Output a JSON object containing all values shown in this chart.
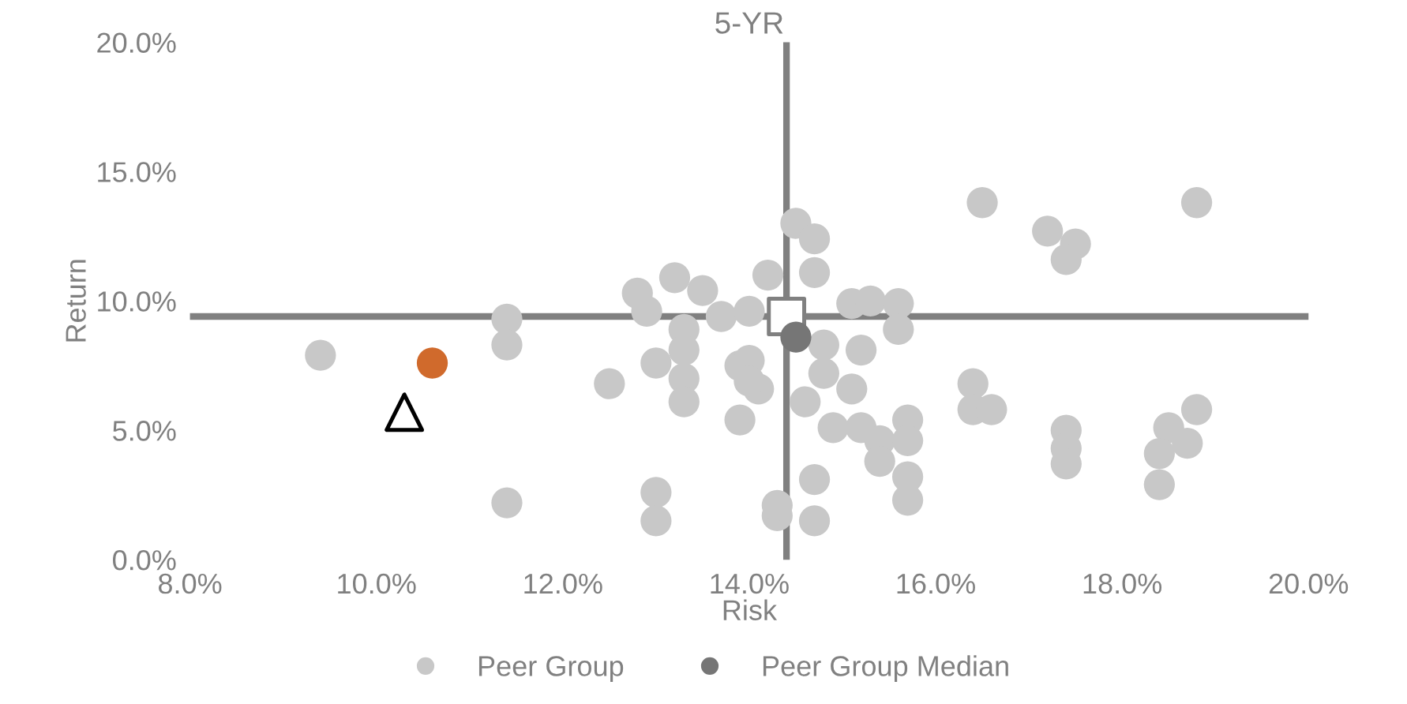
{
  "chart_data": {
    "type": "scatter",
    "title": "5-YR",
    "xlabel": "Risk",
    "ylabel": "Return",
    "xlim": [
      8,
      20
    ],
    "ylim": [
      0,
      20
    ],
    "xticks": [
      {
        "value": 8,
        "label": "8.0%"
      },
      {
        "value": 10,
        "label": "10.0%"
      },
      {
        "value": 12,
        "label": "12.0%"
      },
      {
        "value": 14,
        "label": "14.0%"
      },
      {
        "value": 16,
        "label": "16.0%"
      },
      {
        "value": 18,
        "label": "18.0%"
      },
      {
        "value": 20,
        "label": "20.0%"
      }
    ],
    "yticks": [
      {
        "value": 0,
        "label": "0.0%"
      },
      {
        "value": 5,
        "label": "5.0%"
      },
      {
        "value": 10,
        "label": "10.0%"
      },
      {
        "value": 15,
        "label": "15.0%"
      },
      {
        "value": 20,
        "label": "20.0%"
      }
    ],
    "grid": false,
    "legend": "bottom",
    "ref_lines": [
      {
        "axis": "x",
        "value": 14.4,
        "color": "#808080"
      },
      {
        "axis": "y",
        "value": 9.4,
        "color": "#808080"
      }
    ],
    "series": [
      {
        "name": "Peer Group",
        "color": "#c8c8c8",
        "marker": "circle",
        "x": [
          9.4,
          11.4,
          11.4,
          11.4,
          12.5,
          13.0,
          13.0,
          13.0,
          12.8,
          13.2,
          13.5,
          13.3,
          13.3,
          13.3,
          13.7,
          14.0,
          13.9,
          13.9,
          14.2,
          14.3,
          16.5,
          18.8,
          17.2,
          17.5,
          17.4,
          14.5,
          14.7,
          14.7,
          15.1,
          15.3,
          15.6,
          15.6,
          15.2,
          14.8,
          14.8,
          14.6,
          15.1,
          14.9,
          15.2,
          15.4,
          15.4,
          15.7,
          15.7,
          15.7,
          15.7,
          16.4,
          16.4,
          16.6,
          17.4,
          17.4,
          17.4,
          18.5,
          18.4,
          18.4,
          18.8,
          18.7,
          14.7,
          14.7,
          14.3,
          14.1,
          14.0,
          14.0,
          12.9,
          13.3
        ],
        "values": [
          7.9,
          2.2,
          9.3,
          8.3,
          6.8,
          7.6,
          2.6,
          1.5,
          10.3,
          10.9,
          10.4,
          8.9,
          7.0,
          6.1,
          9.4,
          9.6,
          7.5,
          5.4,
          11.0,
          1.7,
          13.8,
          13.8,
          12.7,
          12.2,
          11.6,
          13.0,
          12.4,
          11.1,
          9.9,
          10.0,
          9.9,
          8.9,
          8.1,
          8.3,
          7.2,
          6.1,
          6.6,
          5.1,
          5.1,
          4.6,
          3.8,
          5.4,
          4.6,
          3.2,
          2.3,
          6.8,
          5.8,
          5.8,
          5.0,
          4.3,
          3.7,
          5.1,
          4.1,
          2.9,
          5.8,
          4.5,
          3.1,
          1.5,
          2.1,
          6.6,
          7.7,
          6.9,
          9.6,
          8.1
        ]
      },
      {
        "color": "#d06a2c",
        "marker": "circle",
        "x": [
          10.6
        ],
        "values": [
          7.6
        ]
      },
      {
        "color": "#808080",
        "marker": "square",
        "x": [
          14.4
        ],
        "values": [
          9.4
        ]
      },
      {
        "color": "#000000",
        "marker": "triangle",
        "x": [
          10.3
        ],
        "values": [
          5.7
        ]
      },
      {
        "name": "Peer Group Median",
        "color": "#767676",
        "marker": "circle",
        "x": [
          14.5
        ],
        "values": [
          8.6
        ]
      }
    ]
  }
}
